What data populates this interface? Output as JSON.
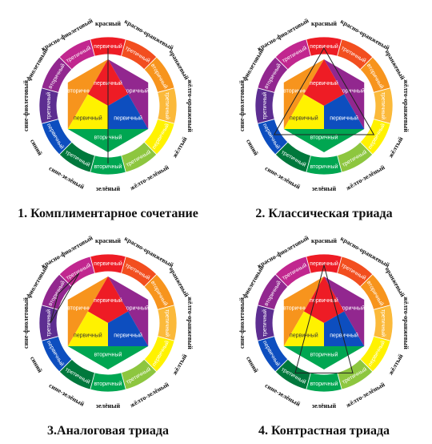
{
  "colors": {
    "red": "#ee1c25",
    "red_orange": "#f24e1f",
    "orange": "#f7941d",
    "yellow_orange": "#fbb93a",
    "yellow": "#fff200",
    "yellow_green": "#8dc63f",
    "green": "#00a651",
    "blue_green": "#00783c",
    "blue": "#0d4ebf",
    "blue_violet": "#5d2e91",
    "violet": "#92278f",
    "red_violet": "#c1278f",
    "ring": "#ffffff",
    "line": "#222222"
  },
  "ring_labels": {
    "primary": "первичный",
    "secondary": "вторичный",
    "tertiary": "третичный"
  },
  "outer_labels": [
    "красный",
    "красно-оранжевый",
    "оранжевый",
    "жёлто-оранжевый",
    "жёлтый",
    "жёлто-зелёный",
    "зелёный",
    "сине-зелёный",
    "синий",
    "сине-фиолетовый",
    "фиолетовый",
    "красно-фиолетовый"
  ],
  "wheels": [
    {
      "caption": "1. Комплиментарное сочетание",
      "scheme": "complementary"
    },
    {
      "caption": "2. Классическая триада",
      "scheme": "triad"
    },
    {
      "caption": "3.Аналоговая триада",
      "scheme": "analog"
    },
    {
      "caption": "4. Контрастная триада",
      "scheme": "contrast"
    }
  ]
}
